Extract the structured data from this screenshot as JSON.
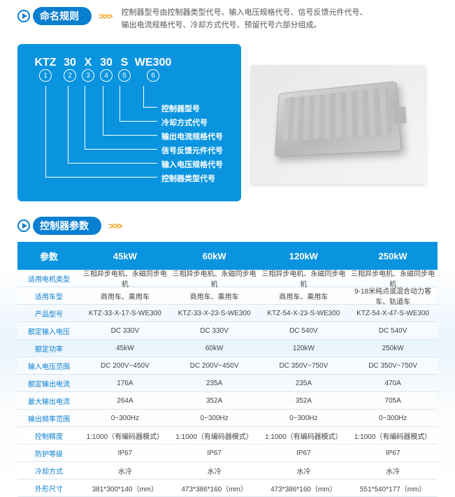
{
  "naming_section": {
    "title": "命名规则",
    "chevrons": ">>>",
    "description_line1": "控制器型号由控制器类型代号、输入电压规格代号、信号反馈元件代号、",
    "description_line2": "输出电流规格代号、冷却方式代号、预留代号六部分组成。",
    "code_parts": [
      "KTZ",
      "30",
      "X",
      "30",
      "S",
      "WE300"
    ],
    "circle_nums": [
      "1",
      "2",
      "3",
      "4",
      "5",
      "6"
    ],
    "labels": [
      "控制器型号",
      "冷却方式代号",
      "输出电流规格代号",
      "信号反馈元件代号",
      "输入电压规格代号",
      "控制器类型代号"
    ]
  },
  "params_section": {
    "title": "控制器参数",
    "chevrons": ">>>",
    "header_label": "参数",
    "columns": [
      "45kW",
      "60kW",
      "120kW",
      "250kW"
    ],
    "rows": [
      {
        "label": "适用电机类型",
        "cells": [
          "三相异步电机、永磁同步电机",
          "三相异步电机、永磁同步电机",
          "三相异步电机、永磁同步电机",
          "三相异步电机、永磁同步电机"
        ]
      },
      {
        "label": "适用车型",
        "cells": [
          "商用车、乘用车",
          "商用车、乘用车",
          "商用车、乘用车",
          "9-18米纯点或混合动力客车、轨道车"
        ]
      },
      {
        "label": "产品型号",
        "cells": [
          "KTZ-33-X-17-S-WE300",
          "KTZ-33-X-23-S-WE300",
          "KTZ-54-X-23-S-WE300",
          "KTZ-54-X-47-S-WE300"
        ]
      },
      {
        "label": "额定输入电压",
        "cells": [
          "DC 330V",
          "DC 330V",
          "DC 540V",
          "DC 540V"
        ]
      },
      {
        "label": "额定功率",
        "cells": [
          "45kW",
          "60kW",
          "120kW",
          "250kW"
        ]
      },
      {
        "label": "输入电压范围",
        "cells": [
          "DC 200V~450V",
          "DC 200V~450V",
          "DC 350V~750V",
          "DC 350V~750V"
        ]
      },
      {
        "label": "额定输出电流",
        "cells": [
          "176A",
          "235A",
          "235A",
          "470A"
        ]
      },
      {
        "label": "最大输出电流",
        "cells": [
          "264A",
          "352A",
          "352A",
          "705A"
        ]
      },
      {
        "label": "输出频率范围",
        "cells": [
          "0~300Hz",
          "0~300Hz",
          "0~300Hz",
          "0~300Hz"
        ]
      },
      {
        "label": "控制精度",
        "cells": [
          "1:1000（有编码器模式）",
          "1:1000（有编码器模式）",
          "1:1000（有编码器模式）",
          "1:1000（有编码器模式）"
        ]
      },
      {
        "label": "防护等级",
        "cells": [
          "IP67",
          "IP67",
          "IP67",
          "IP67"
        ]
      },
      {
        "label": "冷却方式",
        "cells": [
          "水冷",
          "水冷",
          "水冷",
          "水冷"
        ]
      },
      {
        "label": "外形尺寸",
        "cells": [
          "381*300*140（mm）",
          "473*386*160（mm）",
          "473*386*160（mm）",
          "551*540*177（mm）"
        ]
      }
    ]
  },
  "style": {
    "brand_blue": "#0a94df",
    "header_blue": "#0a7fd0",
    "chevron_color": "#f5a623",
    "bg_white": "#ffffff"
  }
}
